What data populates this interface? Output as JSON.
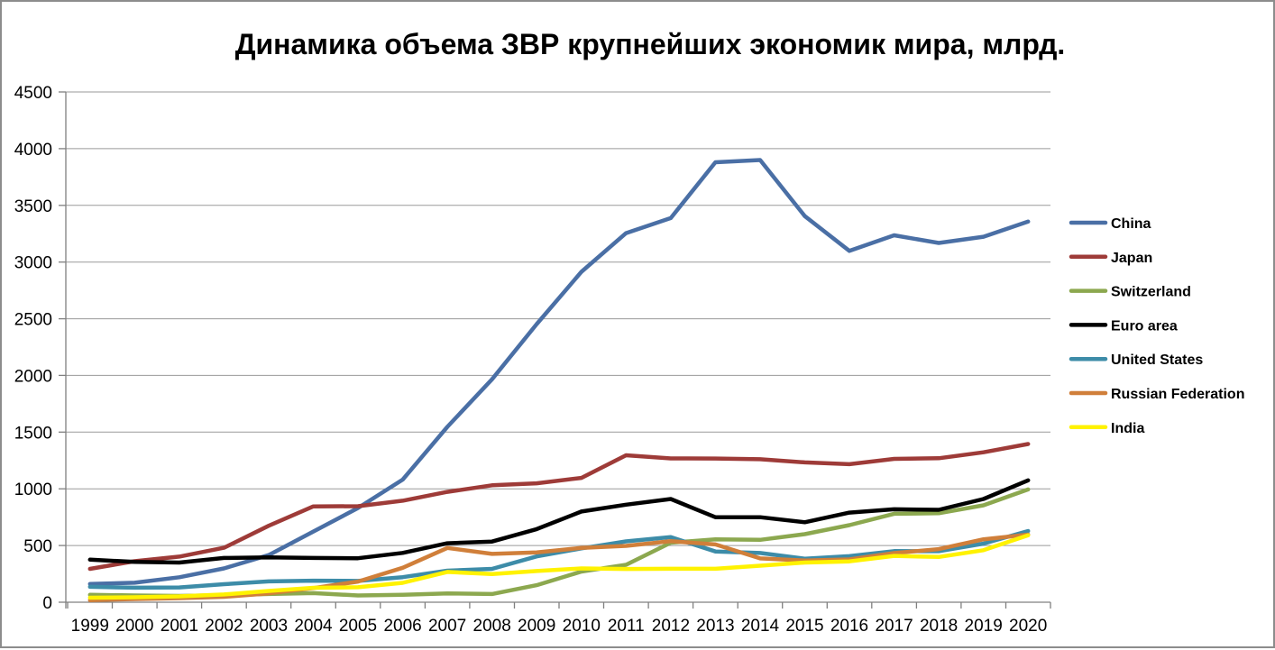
{
  "frame": {
    "background_color": "#ffffff",
    "border_color": "#8c8c8c",
    "grid_color": "#9a9a9a",
    "axis_color": "#808080",
    "text_color": "#000000"
  },
  "chart_data": {
    "type": "line",
    "title": "Динамика объема ЗВР крупнейших экономик мира, млрд.",
    "xlabel": "",
    "ylabel": "",
    "ylim": [
      0,
      4500
    ],
    "ytick_step": 500,
    "grid": true,
    "legend_position": "right",
    "x": [
      "1999",
      "2000",
      "2001",
      "2002",
      "2003",
      "2004",
      "2005",
      "2006",
      "2007",
      "2008",
      "2009",
      "2010",
      "2011",
      "2012",
      "2013",
      "2014",
      "2015",
      "2016",
      "2017",
      "2018",
      "2019",
      "2020"
    ],
    "y_ticks": [
      4500,
      4000,
      3500,
      3000,
      2500,
      2000,
      1500,
      1000,
      500,
      0
    ],
    "series": [
      {
        "name": "China",
        "color": "#4A6FA5",
        "values": [
          161,
          172,
          220,
          298,
          416,
          623,
          831,
          1081,
          1546,
          1966,
          2453,
          2914,
          3255,
          3388,
          3880,
          3900,
          3405,
          3098,
          3236,
          3168,
          3223,
          3357
        ]
      },
      {
        "name": "Japan",
        "color": "#9E3B38",
        "values": [
          294,
          362,
          402,
          480,
          674,
          845,
          847,
          895,
          973,
          1031,
          1049,
          1096,
          1296,
          1268,
          1267,
          1261,
          1233,
          1217,
          1264,
          1270,
          1322,
          1395
        ]
      },
      {
        "name": "Switzerland",
        "color": "#8CA84F",
        "values": [
          65,
          60,
          56,
          62,
          72,
          80,
          60,
          65,
          78,
          72,
          150,
          270,
          330,
          525,
          555,
          550,
          600,
          680,
          780,
          785,
          855,
          995
        ]
      },
      {
        "name": "Euro area",
        "color": "#000000",
        "values": [
          375,
          355,
          350,
          390,
          395,
          390,
          388,
          435,
          520,
          535,
          645,
          800,
          860,
          910,
          750,
          750,
          705,
          790,
          820,
          815,
          910,
          1075
        ]
      },
      {
        "name": "United States",
        "color": "#3D8CA8",
        "values": [
          136,
          128,
          130,
          159,
          184,
          190,
          188,
          221,
          278,
          294,
          404,
          475,
          537,
          574,
          448,
          434,
          384,
          406,
          451,
          450,
          517,
          628
        ]
      },
      {
        "name": "Russian Federation",
        "color": "#D07F3A",
        "values": [
          18,
          28,
          36,
          48,
          78,
          125,
          182,
          304,
          479,
          426,
          439,
          479,
          497,
          538,
          510,
          386,
          368,
          378,
          433,
          468,
          555,
          596
        ]
      },
      {
        "name": "India",
        "color": "#FFF200",
        "values": [
          40,
          44,
          52,
          68,
          99,
          127,
          132,
          171,
          267,
          248,
          275,
          298,
          293,
          295,
          295,
          322,
          350,
          360,
          409,
          399,
          459,
          590
        ]
      }
    ]
  }
}
